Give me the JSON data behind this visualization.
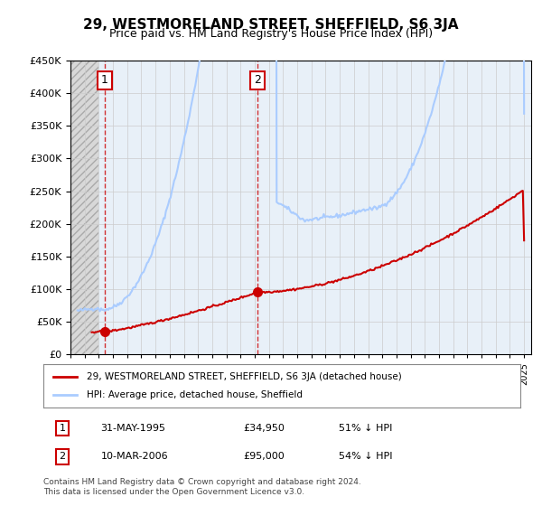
{
  "title": "29, WESTMORELAND STREET, SHEFFIELD, S6 3JA",
  "subtitle": "Price paid vs. HM Land Registry's House Price Index (HPI)",
  "ylim": [
    0,
    450000
  ],
  "yticks": [
    0,
    50000,
    100000,
    150000,
    200000,
    250000,
    300000,
    350000,
    400000,
    450000
  ],
  "sale1_date": 1995.42,
  "sale1_price": 34950,
  "sale1_label": "1",
  "sale2_date": 2006.19,
  "sale2_price": 95000,
  "sale2_label": "2",
  "hpi_color": "#aaccff",
  "price_color": "#cc0000",
  "grid_color": "#cccccc",
  "bg_plot": "#e8f0f8",
  "legend_label1": "29, WESTMORELAND STREET, SHEFFIELD, S6 3JA (detached house)",
  "legend_label2": "HPI: Average price, detached house, Sheffield",
  "footnote": "Contains HM Land Registry data © Crown copyright and database right 2024.\nThis data is licensed under the Open Government Licence v3.0.",
  "xmin": 1993.0,
  "xmax": 2025.5
}
